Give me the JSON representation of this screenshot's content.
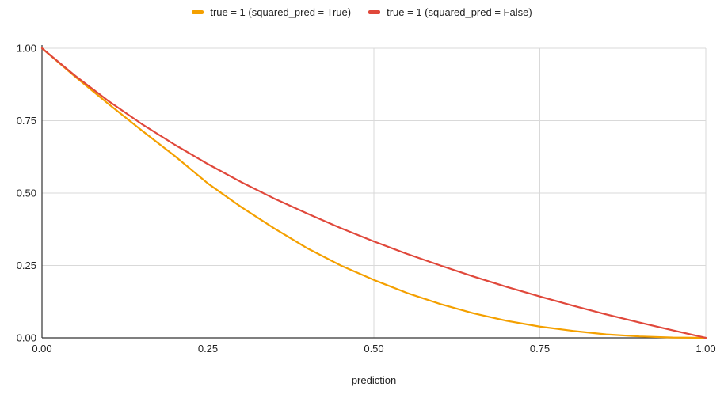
{
  "chart_data": {
    "type": "line",
    "title": "",
    "xlabel": "prediction",
    "ylabel": "",
    "xlim": [
      0,
      1
    ],
    "ylim": [
      0,
      1
    ],
    "x_ticks": [
      "0.00",
      "0.25",
      "0.50",
      "0.75",
      "1.00"
    ],
    "y_ticks": [
      "0.00",
      "0.25",
      "0.50",
      "0.75",
      "1.00"
    ],
    "grid": true,
    "legend_position": "top",
    "series": [
      {
        "name": "true = 1 (squared_pred = True)",
        "color": "#f4a000",
        "x": [
          0,
          0.05,
          0.1,
          0.15,
          0.2,
          0.25,
          0.3,
          0.35,
          0.4,
          0.45,
          0.5,
          0.55,
          0.6,
          0.65,
          0.7,
          0.75,
          0.8,
          0.85,
          0.9,
          0.95,
          1.0
        ],
        "y": [
          1.0,
          0.902,
          0.808,
          0.717,
          0.628,
          0.533,
          0.452,
          0.378,
          0.309,
          0.25,
          0.2,
          0.155,
          0.117,
          0.085,
          0.059,
          0.039,
          0.024,
          0.012,
          0.005,
          0.001,
          0.0
        ]
      },
      {
        "name": "true = 1 (squared_pred = False)",
        "color": "#e0483b",
        "x": [
          0,
          0.05,
          0.1,
          0.15,
          0.2,
          0.25,
          0.3,
          0.35,
          0.4,
          0.45,
          0.5,
          0.55,
          0.6,
          0.65,
          0.7,
          0.75,
          0.8,
          0.85,
          0.9,
          0.95,
          1.0
        ],
        "y": [
          1.0,
          0.905,
          0.818,
          0.739,
          0.667,
          0.6,
          0.538,
          0.481,
          0.429,
          0.379,
          0.333,
          0.29,
          0.25,
          0.212,
          0.176,
          0.143,
          0.111,
          0.081,
          0.053,
          0.026,
          0.0
        ]
      }
    ]
  }
}
